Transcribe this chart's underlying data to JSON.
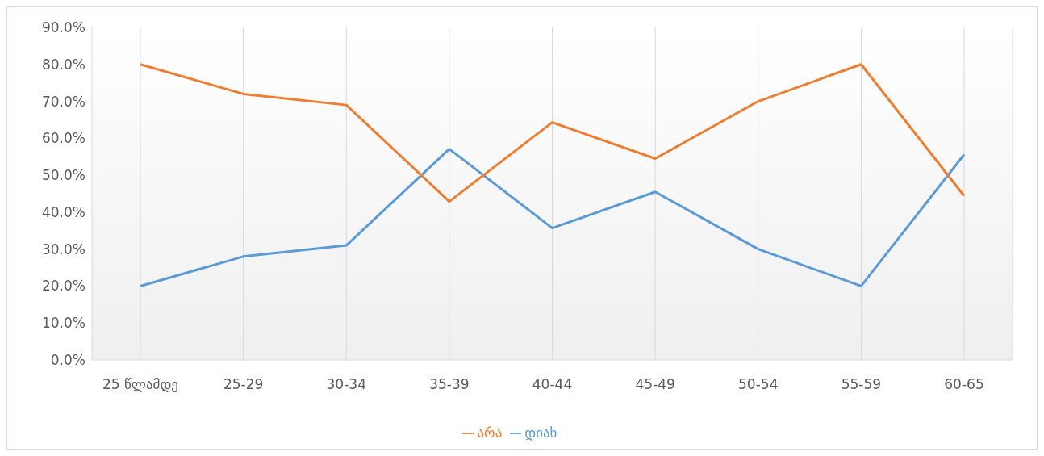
{
  "chart_data": {
    "type": "line",
    "categories": [
      "25 წლამდე",
      "25-29",
      "30-34",
      "35-39",
      "40-44",
      "45-49",
      "50-54",
      "55-59",
      "60-65"
    ],
    "series": [
      {
        "name": "დიახ",
        "color": "#5b9bd5",
        "values": [
          20.0,
          28.0,
          31.0,
          57.1,
          35.7,
          45.5,
          30.0,
          20.0,
          55.6
        ]
      },
      {
        "name": "არა",
        "color": "#ed7d31",
        "values": [
          80.0,
          72.0,
          69.0,
          42.9,
          64.3,
          54.5,
          70.0,
          80.0,
          44.4
        ]
      }
    ],
    "ylim": [
      0,
      90
    ],
    "yticks": [
      {
        "value": 0,
        "label": "0.0%"
      },
      {
        "value": 10,
        "label": "10.0%"
      },
      {
        "value": 20,
        "label": "20.0%"
      },
      {
        "value": 30,
        "label": "30.0%"
      },
      {
        "value": 40,
        "label": "40.0%"
      },
      {
        "value": 50,
        "label": "50.0%"
      },
      {
        "value": 60,
        "label": "60.0%"
      },
      {
        "value": 70,
        "label": "70.0%"
      },
      {
        "value": 80,
        "label": "80.0%"
      },
      {
        "value": 90,
        "label": "90.0%"
      }
    ],
    "grid": "x",
    "legend": "bottom",
    "marker": "none",
    "line_style": "solid"
  }
}
